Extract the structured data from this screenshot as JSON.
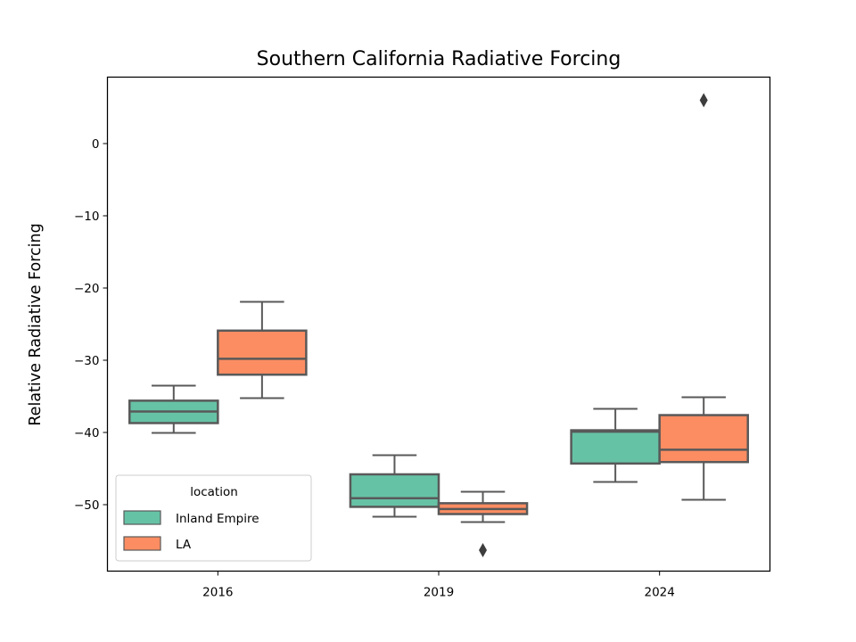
{
  "chart_data": {
    "type": "box",
    "title": "Southern California Radiative Forcing",
    "xlabel": "",
    "ylabel": "Relative Radiative Forcing",
    "categories": [
      "2016",
      "2019",
      "2024"
    ],
    "yticks": [
      0,
      -10,
      -20,
      -30,
      -40,
      -50
    ],
    "ytick_labels": [
      "0",
      "−10",
      "−20",
      "−30",
      "−40",
      "−50"
    ],
    "ylim": [
      -59.2,
      9.2
    ],
    "grid": false,
    "legend": {
      "title": "location",
      "position": "lower-left",
      "entries": [
        "Inland Empire",
        "LA"
      ]
    },
    "series": [
      {
        "name": "Inland Empire",
        "color": "#66c2a5",
        "boxes": [
          {
            "category": "2016",
            "whisker_low": -40.0,
            "q1": -38.7,
            "median": -37.1,
            "q3": -35.6,
            "whisker_high": -33.5,
            "outliers": []
          },
          {
            "category": "2019",
            "whisker_low": -51.6,
            "q1": -50.3,
            "median": -49.1,
            "q3": -45.8,
            "whisker_high": -43.1,
            "outliers": []
          },
          {
            "category": "2024",
            "whisker_low": -46.8,
            "q1": -44.3,
            "median": -39.9,
            "q3": -39.7,
            "whisker_high": -36.7,
            "outliers": []
          }
        ]
      },
      {
        "name": "LA",
        "color": "#fc8d62",
        "boxes": [
          {
            "category": "2016",
            "whisker_low": -35.2,
            "q1": -32.0,
            "median": -29.8,
            "q3": -25.9,
            "whisker_high": -21.9,
            "outliers": []
          },
          {
            "category": "2019",
            "whisker_low": -52.4,
            "q1": -51.3,
            "median": -50.6,
            "q3": -49.8,
            "whisker_high": -48.2,
            "outliers": [
              -56.3
            ]
          },
          {
            "category": "2024",
            "whisker_low": -49.2,
            "q1": -44.1,
            "median": -42.4,
            "q3": -37.6,
            "whisker_high": -35.1,
            "outliers": [
              6.0
            ]
          }
        ]
      }
    ]
  }
}
